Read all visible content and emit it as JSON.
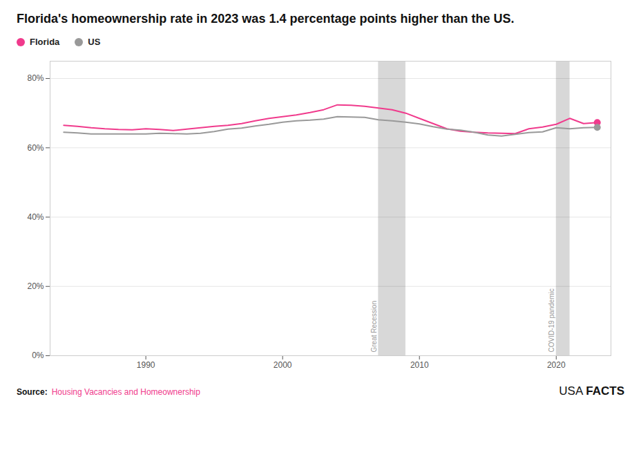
{
  "chart_data": {
    "type": "line",
    "title": "Florida's homeownership rate in 2023 was 1.4 percentage points higher than the US.",
    "x": [
      1984,
      1985,
      1986,
      1987,
      1988,
      1989,
      1990,
      1991,
      1992,
      1993,
      1994,
      1995,
      1996,
      1997,
      1998,
      1999,
      2000,
      2001,
      2002,
      2003,
      2004,
      2005,
      2006,
      2007,
      2008,
      2009,
      2010,
      2011,
      2012,
      2013,
      2014,
      2015,
      2016,
      2017,
      2018,
      2019,
      2020,
      2021,
      2022,
      2023
    ],
    "series": [
      {
        "name": "Florida",
        "color": "#f03a8c",
        "values": [
          66.5,
          66.2,
          65.8,
          65.5,
          65.3,
          65.2,
          65.5,
          65.3,
          65.0,
          65.4,
          65.8,
          66.2,
          66.5,
          67.0,
          67.8,
          68.5,
          69.0,
          69.5,
          70.2,
          71.0,
          72.4,
          72.3,
          72.0,
          71.5,
          71.0,
          70.0,
          68.5,
          67.0,
          65.5,
          64.8,
          64.5,
          64.3,
          64.2,
          64.1,
          65.5,
          66.0,
          66.8,
          68.5,
          67.0,
          67.3
        ]
      },
      {
        "name": "US",
        "color": "#999999",
        "values": [
          64.5,
          64.3,
          64.0,
          64.0,
          64.0,
          64.0,
          64.0,
          64.2,
          64.1,
          64.0,
          64.2,
          64.7,
          65.4,
          65.7,
          66.3,
          66.8,
          67.4,
          67.8,
          68.0,
          68.3,
          69.0,
          68.9,
          68.8,
          68.1,
          67.8,
          67.4,
          66.9,
          66.1,
          65.4,
          65.1,
          64.5,
          63.7,
          63.4,
          63.9,
          64.4,
          64.6,
          65.8,
          65.5,
          65.8,
          65.9
        ]
      }
    ],
    "bands": [
      {
        "start": 2007,
        "end": 2009,
        "label": "Great Recession",
        "color": "#d8d8d8"
      },
      {
        "start": 2020,
        "end": 2021,
        "label": "COVID-19 pandemic",
        "color": "#d8d8d8"
      }
    ],
    "xlim": [
      1983,
      2024
    ],
    "xticks": [
      1990,
      2000,
      2010,
      2020
    ],
    "ylim": [
      0,
      85
    ],
    "yticks": [
      {
        "value": 0,
        "label": "0%"
      },
      {
        "value": 20,
        "label": "20%"
      },
      {
        "value": 40,
        "label": "40%"
      },
      {
        "value": 60,
        "label": "60%"
      },
      {
        "value": 80,
        "label": "80%"
      }
    ],
    "grid": true,
    "legend": "top-left",
    "source_label": "Source:",
    "source": "Housing Vacancies and Homeownership",
    "brand": [
      "USA",
      "FACTS"
    ]
  }
}
